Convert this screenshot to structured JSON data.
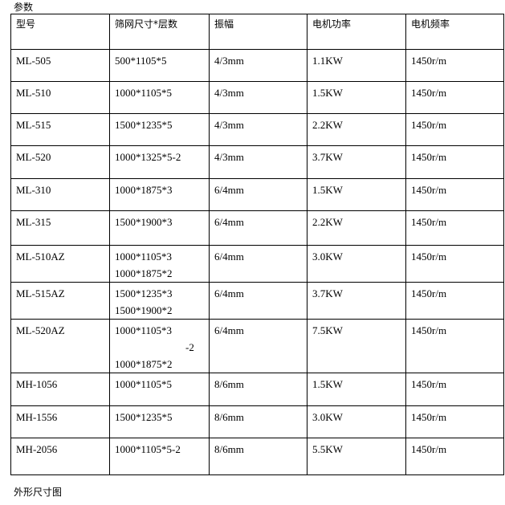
{
  "section_title": "参数",
  "footer_title": "外形尺寸图",
  "table": {
    "headers": [
      "型号",
      "筛网尺寸*层数",
      "振幅",
      "电机功率",
      "电机频率"
    ],
    "rows": [
      {
        "model": "ML-505",
        "screen": [
          "500*1105*5"
        ],
        "amplitude": "4/3mm",
        "power": "1.1KW",
        "frequency": "1450r/m"
      },
      {
        "model": "ML-510",
        "screen": [
          "1000*1105*5"
        ],
        "amplitude": "4/3mm",
        "power": "1.5KW",
        "frequency": "1450r/m"
      },
      {
        "model": "ML-515",
        "screen": [
          "1500*1235*5"
        ],
        "amplitude": "4/3mm",
        "power": "2.2KW",
        "frequency": "1450r/m"
      },
      {
        "model": "ML-520",
        "screen": [
          "1000*1325*5-2"
        ],
        "amplitude": "4/3mm",
        "power": "3.7KW",
        "frequency": "1450r/m"
      },
      {
        "model": "ML-310",
        "screen": [
          "1000*1875*3"
        ],
        "amplitude": "6/4mm",
        "power": "1.5KW",
        "frequency": "1450r/m"
      },
      {
        "model": "ML-315",
        "screen": [
          "1500*1900*3"
        ],
        "amplitude": "6/4mm",
        "power": "2.2KW",
        "frequency": "1450r/m"
      },
      {
        "model": "ML-510AZ",
        "screen": [
          "1000*1105*3",
          "1000*1875*2"
        ],
        "amplitude": "6/4mm",
        "power": "3.0KW",
        "frequency": "1450r/m"
      },
      {
        "model": "ML-515AZ",
        "screen": [
          "1500*1235*3",
          "1500*1900*2"
        ],
        "amplitude": "6/4mm",
        "power": "3.7KW",
        "frequency": "1450r/m"
      },
      {
        "model": "ML-520AZ",
        "screen": [
          "1000*1105*3",
          "-2",
          "1000*1875*2"
        ],
        "amplitude": "6/4mm",
        "power": "7.5KW",
        "frequency": "1450r/m"
      },
      {
        "model": "MH-1056",
        "screen": [
          "1000*1105*5"
        ],
        "amplitude": "8/6mm",
        "power": "1.5KW",
        "frequency": "1450r/m"
      },
      {
        "model": "MH-1556",
        "screen": [
          "1500*1235*5"
        ],
        "amplitude": "8/6mm",
        "power": "3.0KW",
        "frequency": "1450r/m"
      },
      {
        "model": "MH-2056",
        "screen": [
          "1000*1105*5-2"
        ],
        "amplitude": "8/6mm",
        "power": "5.5KW",
        "frequency": "1450r/m"
      }
    ]
  }
}
